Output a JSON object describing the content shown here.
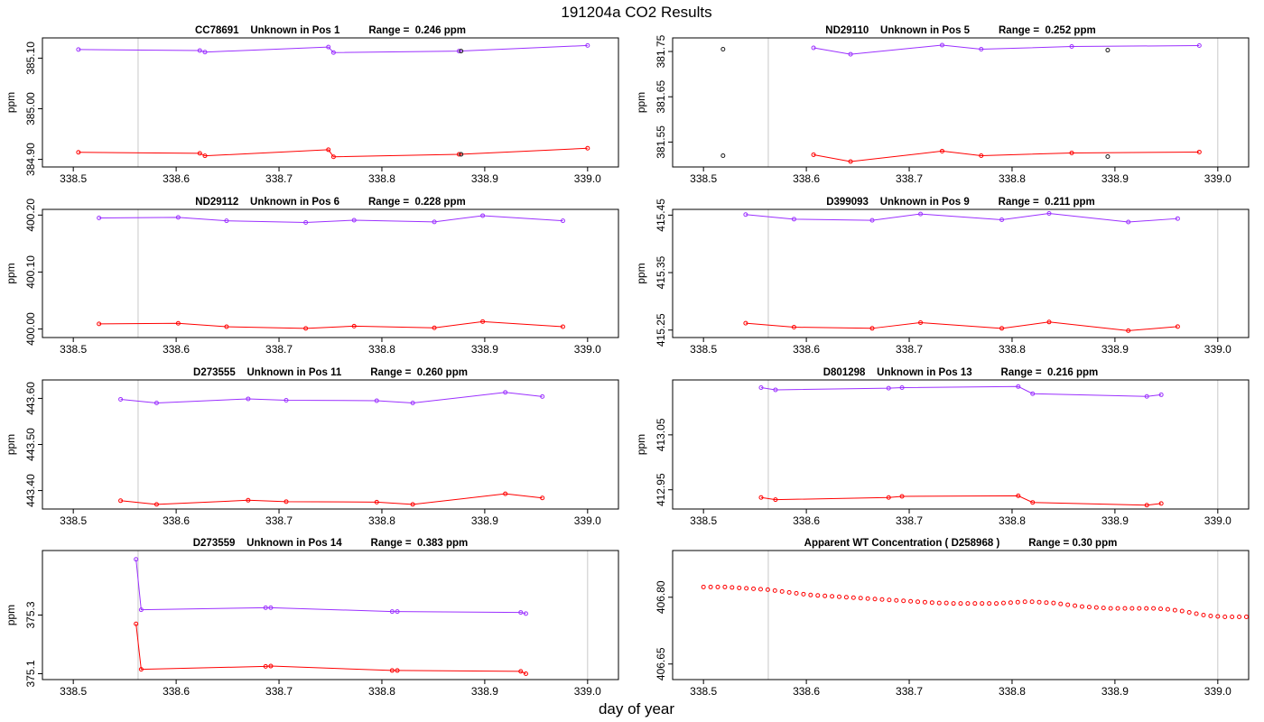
{
  "page": {
    "title": "191204a  CO2 Results",
    "xlabel": "day of year"
  },
  "colors": {
    "upper": "#9b30ff",
    "lower": "#ff0000",
    "refline": "#c8c8c8",
    "dark": "#1a1a1a"
  },
  "chart_data": [
    {
      "type": "line",
      "title": "CC78691    Unknown in Pos 1          Range =  0.246 ppm",
      "ylabel": "ppm",
      "xlim": [
        338.47,
        339.03
      ],
      "ylim": [
        384.885,
        385.14
      ],
      "xticks": [
        "338.5",
        "338.6",
        "338.7",
        "338.8",
        "338.9",
        "339.0"
      ],
      "xtick_values": [
        338.5,
        338.6,
        338.7,
        338.8,
        338.9,
        339.0
      ],
      "yticks": [
        "384.90",
        "385.00",
        "385.10"
      ],
      "ytick_values": [
        384.9,
        385.0,
        385.1
      ],
      "refline_x": 338.563,
      "rightline_x": null,
      "series": [
        {
          "name": "upper",
          "color": "#9b30ff",
          "x": [
            338.505,
            338.623,
            338.628,
            338.748,
            338.753,
            338.875,
            339.0
          ],
          "y": [
            385.117,
            385.115,
            385.112,
            385.122,
            385.111,
            385.114,
            385.125
          ]
        },
        {
          "name": "lower",
          "color": "#ff0000",
          "x": [
            338.505,
            338.623,
            338.628,
            338.748,
            338.753,
            338.875,
            339.0
          ],
          "y": [
            384.914,
            384.912,
            384.907,
            384.919,
            384.905,
            384.91,
            384.922
          ]
        }
      ],
      "isolated": [
        {
          "x": 338.877,
          "y": 385.114
        },
        {
          "x": 338.877,
          "y": 384.91
        }
      ]
    },
    {
      "type": "line",
      "title": "ND29110    Unknown in Pos 5          Range =  0.252 ppm",
      "ylabel": "ppm",
      "xlim": [
        338.47,
        339.03
      ],
      "ylim": [
        381.495,
        381.78
      ],
      "xticks": [
        "338.5",
        "338.6",
        "338.7",
        "338.8",
        "338.9",
        "339.0"
      ],
      "xtick_values": [
        338.5,
        338.6,
        338.7,
        338.8,
        338.9,
        339.0
      ],
      "yticks": [
        "381.55",
        "381.65",
        "381.75"
      ],
      "ytick_values": [
        381.55,
        381.65,
        381.75
      ],
      "refline_x": 338.563,
      "rightline_x": 339.0,
      "series": [
        {
          "name": "upper",
          "color": "#9b30ff",
          "x": [
            338.607,
            338.643,
            338.732,
            338.77,
            338.858,
            338.982
          ],
          "y": [
            381.758,
            381.744,
            381.764,
            381.755,
            381.761,
            381.763
          ]
        },
        {
          "name": "lower",
          "color": "#ff0000",
          "x": [
            338.607,
            338.643,
            338.732,
            338.77,
            338.858,
            338.982
          ],
          "y": [
            381.522,
            381.507,
            381.53,
            381.52,
            381.526,
            381.528
          ]
        }
      ],
      "isolated": [
        {
          "x": 338.519,
          "y": 381.755
        },
        {
          "x": 338.519,
          "y": 381.52
        },
        {
          "x": 338.893,
          "y": 381.753
        },
        {
          "x": 338.893,
          "y": 381.518
        }
      ]
    },
    {
      "type": "line",
      "title": "ND29112    Unknown in Pos 6          Range =  0.228 ppm",
      "ylabel": "ppm",
      "xlim": [
        338.47,
        339.03
      ],
      "ylim": [
        399.985,
        400.21
      ],
      "xticks": [
        "338.5",
        "338.6",
        "338.7",
        "338.8",
        "338.9",
        "339.0"
      ],
      "xtick_values": [
        338.5,
        338.6,
        338.7,
        338.8,
        338.9,
        339.0
      ],
      "yticks": [
        "400.00",
        "400.10",
        "400.20"
      ],
      "ytick_values": [
        400.0,
        400.1,
        400.2
      ],
      "refline_x": 338.563,
      "rightline_x": null,
      "series": [
        {
          "name": "upper",
          "color": "#9b30ff",
          "x": [
            338.525,
            338.602,
            338.649,
            338.726,
            338.773,
            338.851,
            338.898,
            338.976
          ],
          "y": [
            400.195,
            400.196,
            400.19,
            400.187,
            400.191,
            400.188,
            400.199,
            400.19
          ]
        },
        {
          "name": "lower",
          "color": "#ff0000",
          "x": [
            338.525,
            338.602,
            338.649,
            338.726,
            338.773,
            338.851,
            338.898,
            338.976
          ],
          "y": [
            400.009,
            400.01,
            400.004,
            400.001,
            400.005,
            400.002,
            400.013,
            400.004
          ]
        }
      ],
      "isolated": []
    },
    {
      "type": "line",
      "title": "D399093    Unknown in Pos 9          Range =  0.211 ppm",
      "ylabel": "ppm",
      "xlim": [
        338.47,
        339.03
      ],
      "ylim": [
        415.237,
        415.46
      ],
      "xticks": [
        "338.5",
        "338.6",
        "338.7",
        "338.8",
        "338.9",
        "339.0"
      ],
      "xtick_values": [
        338.5,
        338.6,
        338.7,
        338.8,
        338.9,
        339.0
      ],
      "yticks": [
        "415.25",
        "415.35",
        "415.45"
      ],
      "ytick_values": [
        415.25,
        415.35,
        415.45
      ],
      "refline_x": 338.563,
      "rightline_x": 339.0,
      "series": [
        {
          "name": "upper",
          "color": "#9b30ff",
          "x": [
            338.541,
            338.588,
            338.664,
            338.711,
            338.79,
            338.836,
            338.913,
            338.961
          ],
          "y": [
            415.451,
            415.443,
            415.441,
            415.452,
            415.442,
            415.453,
            415.438,
            415.444
          ]
        },
        {
          "name": "lower",
          "color": "#ff0000",
          "x": [
            338.541,
            338.588,
            338.664,
            338.711,
            338.79,
            338.836,
            338.913,
            338.961
          ],
          "y": [
            415.262,
            415.255,
            415.253,
            415.263,
            415.253,
            415.264,
            415.249,
            415.256
          ]
        }
      ],
      "isolated": []
    },
    {
      "type": "line",
      "title": "D273555    Unknown in Pos 11          Range =  0.260 ppm",
      "ylabel": "ppm",
      "xlim": [
        338.47,
        339.03
      ],
      "ylim": [
        443.36,
        443.64
      ],
      "xticks": [
        "338.5",
        "338.6",
        "338.7",
        "338.8",
        "338.9",
        "339.0"
      ],
      "xtick_values": [
        338.5,
        338.6,
        338.7,
        338.8,
        338.9,
        339.0
      ],
      "yticks": [
        "443.40",
        "443.50",
        "443.60"
      ],
      "ytick_values": [
        443.4,
        443.5,
        443.6
      ],
      "refline_x": 338.563,
      "rightline_x": null,
      "series": [
        {
          "name": "upper",
          "color": "#9b30ff",
          "x": [
            338.546,
            338.581,
            338.67,
            338.707,
            338.795,
            338.83,
            338.92,
            338.956
          ],
          "y": [
            443.598,
            443.59,
            443.599,
            443.596,
            443.595,
            443.59,
            443.613,
            443.604
          ]
        },
        {
          "name": "lower",
          "color": "#ff0000",
          "x": [
            338.546,
            338.581,
            338.67,
            338.707,
            338.795,
            338.83,
            338.92,
            338.956
          ],
          "y": [
            443.378,
            443.37,
            443.379,
            443.376,
            443.375,
            443.37,
            443.393,
            443.384
          ]
        }
      ],
      "isolated": []
    },
    {
      "type": "line",
      "title": "D801298    Unknown in Pos 13          Range =  0.216 ppm",
      "ylabel": "ppm",
      "xlim": [
        338.47,
        339.03
      ],
      "ylim": [
        412.915,
        413.15
      ],
      "xticks": [
        "338.5",
        "338.6",
        "338.7",
        "338.8",
        "338.9",
        "339.0"
      ],
      "xtick_values": [
        338.5,
        338.6,
        338.7,
        338.8,
        338.9,
        339.0
      ],
      "yticks": [
        "412.95",
        "413.05"
      ],
      "ytick_values": [
        412.95,
        413.05
      ],
      "refline_x": 338.563,
      "rightline_x": 339.0,
      "series": [
        {
          "name": "upper",
          "color": "#9b30ff",
          "x": [
            338.556,
            338.57,
            338.68,
            338.693,
            338.806,
            338.82,
            338.931,
            338.945
          ],
          "y": [
            413.136,
            413.132,
            413.135,
            413.136,
            413.138,
            413.125,
            413.12,
            413.123
          ]
        },
        {
          "name": "lower",
          "color": "#ff0000",
          "x": [
            338.556,
            338.57,
            338.68,
            338.693,
            338.806,
            338.82,
            338.931,
            338.945
          ],
          "y": [
            412.936,
            412.932,
            412.936,
            412.938,
            412.939,
            412.927,
            412.922,
            412.925
          ]
        }
      ],
      "isolated": []
    },
    {
      "type": "line",
      "title": "D273559    Unknown in Pos 14          Range =  0.383 ppm",
      "ylabel": "ppm",
      "xlim": [
        338.47,
        339.03
      ],
      "ylim": [
        375.08,
        375.52
      ],
      "xticks": [
        "338.5",
        "338.6",
        "338.7",
        "338.8",
        "338.9",
        "339.0"
      ],
      "xtick_values": [
        338.5,
        338.6,
        338.7,
        338.8,
        338.9,
        339.0
      ],
      "yticks": [
        "375.1",
        "375.3"
      ],
      "ytick_values": [
        375.1,
        375.3
      ],
      "refline_x": 338.563,
      "rightline_x": 339.0,
      "series": [
        {
          "name": "upper",
          "color": "#9b30ff",
          "x": [
            338.561,
            338.566,
            338.687,
            338.692,
            338.81,
            338.815,
            338.935,
            338.94
          ],
          "y": [
            375.49,
            375.318,
            375.325,
            375.325,
            375.312,
            375.312,
            375.309,
            375.305
          ]
        },
        {
          "name": "lower",
          "color": "#ff0000",
          "x": [
            338.561,
            338.566,
            338.687,
            338.692,
            338.81,
            338.815,
            338.935,
            338.94
          ],
          "y": [
            375.27,
            375.115,
            375.125,
            375.126,
            375.111,
            375.111,
            375.108,
            375.1
          ]
        }
      ],
      "isolated": []
    },
    {
      "type": "scatter",
      "title": "Apparent WT Concentration ( D258968 )          Range = 0.30 ppm",
      "ylabel": "",
      "xlim": [
        338.47,
        339.03
      ],
      "ylim": [
        406.615,
        406.905
      ],
      "xticks": [
        "338.5",
        "338.6",
        "338.7",
        "338.8",
        "338.9",
        "339.0"
      ],
      "xtick_values": [
        338.5,
        338.6,
        338.7,
        338.8,
        338.9,
        339.0
      ],
      "yticks": [
        "406.65",
        "406.80"
      ],
      "ytick_values": [
        406.65,
        406.8
      ],
      "refline_x": 338.563,
      "rightline_x": 339.0,
      "wt_series": {
        "name": "WT",
        "color": "#ff0000",
        "x_start": 338.5,
        "x_step": 0.0069444,
        "y": [
          406.823,
          406.823,
          406.823,
          406.823,
          406.822,
          406.821,
          406.82,
          406.819,
          406.818,
          406.817,
          406.815,
          406.813,
          406.811,
          406.809,
          406.807,
          406.805,
          406.804,
          406.803,
          406.802,
          406.801,
          406.8,
          406.799,
          406.798,
          406.797,
          406.796,
          406.795,
          406.794,
          406.793,
          406.792,
          406.791,
          406.79,
          406.789,
          406.788,
          406.787,
          406.787,
          406.786,
          406.786,
          406.786,
          406.786,
          406.786,
          406.786,
          406.786,
          406.787,
          406.788,
          406.789,
          406.79,
          406.79,
          406.789,
          406.788,
          406.787,
          406.785,
          406.783,
          406.781,
          406.779,
          406.778,
          406.777,
          406.776,
          406.775,
          406.775,
          406.775,
          406.775,
          406.775,
          406.775,
          406.775,
          406.774,
          406.773,
          406.771,
          406.769,
          406.766,
          406.763,
          406.76,
          406.758,
          406.757,
          406.756,
          406.756,
          406.756,
          406.756
        ]
      }
    }
  ]
}
